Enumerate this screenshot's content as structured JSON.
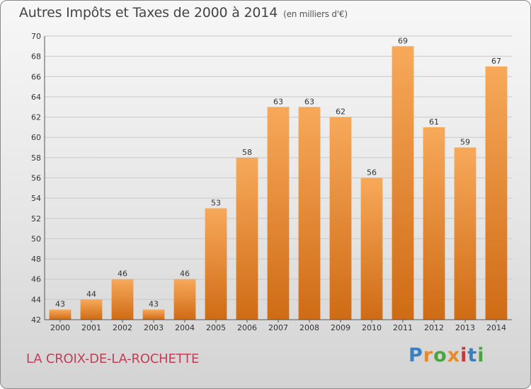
{
  "header": {
    "title": "Autres Impôts et Taxes de 2000 à 2014",
    "unit": "(en milliers d'€)"
  },
  "footer": {
    "commune": "LA CROIX-DE-LA-ROCHETTE"
  },
  "logo": {
    "text": "Proxiti",
    "letters": [
      "P",
      "r",
      "o",
      "x",
      "i",
      "t",
      "i"
    ],
    "colors": [
      "#3a7fc1",
      "#e8892b",
      "#4aa340",
      "#e8892b",
      "#c03a3a",
      "#3a7fc1",
      "#4aa340"
    ]
  },
  "colors": {
    "bar_light": "#f7a95a",
    "bar_dark": "#cf6b15",
    "grid": "#c8c8c8",
    "axis": "#555555"
  },
  "chart_data": {
    "type": "bar",
    "title": "Autres Impôts et Taxes de 2000 à 2014",
    "subtitle": "(en milliers d'€)",
    "xlabel": "",
    "ylabel": "",
    "categories": [
      "2000",
      "2001",
      "2002",
      "2003",
      "2004",
      "2005",
      "2006",
      "2007",
      "2008",
      "2009",
      "2010",
      "2011",
      "2012",
      "2013",
      "2014"
    ],
    "values": [
      43,
      44,
      46,
      43,
      46,
      53,
      58,
      63,
      63,
      62,
      56,
      69,
      61,
      59,
      67
    ],
    "ylim": [
      42,
      70
    ],
    "yticks": [
      42,
      44,
      46,
      48,
      50,
      52,
      54,
      56,
      58,
      60,
      62,
      64,
      66,
      68,
      70
    ],
    "grid": true,
    "data_labels": true
  }
}
